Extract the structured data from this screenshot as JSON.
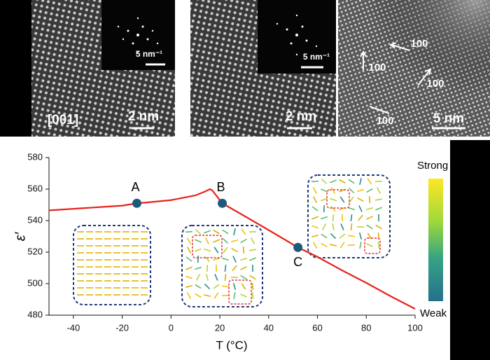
{
  "micrographs": {
    "panel_1_fft_scale": "5 nm⁻¹",
    "panel_1_zone": "[001]",
    "panel_1_scale": "2 nm",
    "panel_2_fft_scale": "5 nm⁻¹",
    "panel_2_scale": "2 nm",
    "panel_3_directions": [
      "100",
      "100",
      "100",
      "100"
    ],
    "panel_3_scale": "5 nm"
  },
  "chart_data": {
    "type": "line",
    "x_label": "T (°C)",
    "y_label": "ε′",
    "x": [
      -50,
      -40,
      -30,
      -20,
      -14,
      -10,
      0,
      10,
      14,
      16,
      17,
      21,
      30,
      40,
      52,
      60,
      70,
      80,
      90,
      100
    ],
    "series": [
      {
        "color": "#e8231c",
        "values": [
          546.5,
          547.5,
          548.5,
          549.5,
          551,
          551.5,
          553,
          556,
          558.5,
          560,
          559,
          551,
          543,
          534,
          523,
          517,
          508.5,
          500.5,
          492,
          484
        ]
      }
    ],
    "markers": [
      {
        "label": "A",
        "x": -14,
        "y": 551
      },
      {
        "label": "B",
        "x": 21,
        "y": 551
      },
      {
        "label": "C",
        "x": 52,
        "y": 523
      }
    ],
    "marker_color": "#1e5a78",
    "xlim": [
      -50,
      100
    ],
    "xticks": [
      -40,
      -20,
      0,
      20,
      40,
      60,
      80,
      100
    ],
    "ylim": [
      480,
      580
    ],
    "yticks": [
      480,
      500,
      520,
      540,
      560,
      580
    ],
    "colorbar": {
      "top": "Strong",
      "bottom": "Weak"
    }
  }
}
